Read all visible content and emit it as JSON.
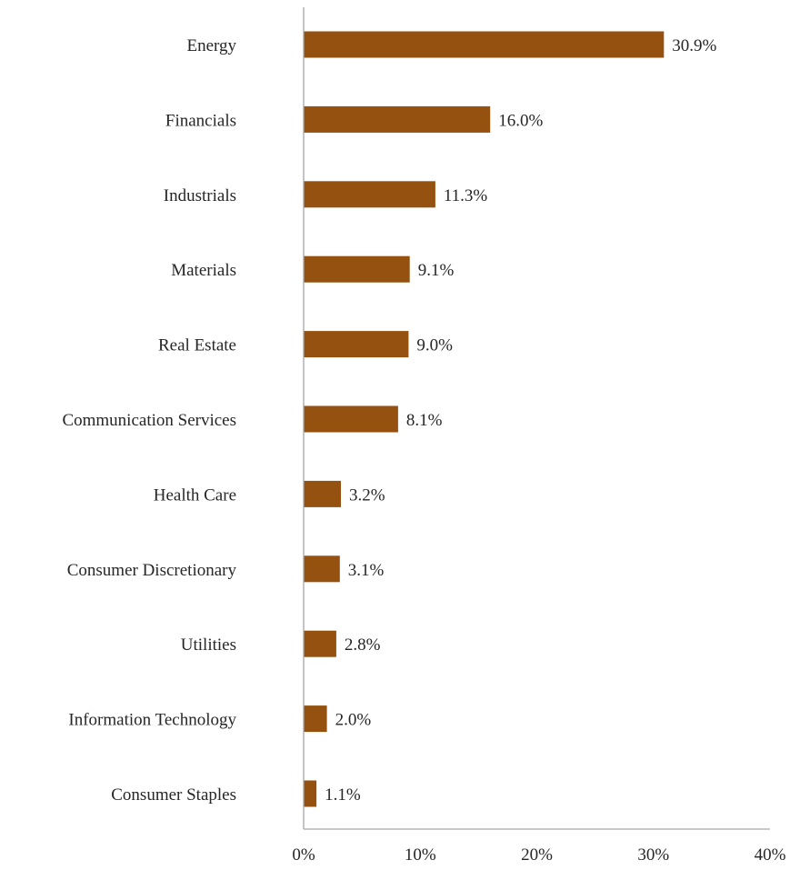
{
  "chart_data": {
    "type": "bar",
    "orientation": "horizontal",
    "categories": [
      "Energy",
      "Financials",
      "Industrials",
      "Materials",
      "Real Estate",
      "Communication Services",
      "Health Care",
      "Consumer Discretionary",
      "Utilities",
      "Information Technology",
      "Consumer Staples"
    ],
    "values": [
      30.9,
      16.0,
      11.3,
      9.1,
      9.0,
      8.1,
      3.2,
      3.1,
      2.8,
      2.0,
      1.1
    ],
    "data_labels": [
      "30.9%",
      "16.0%",
      "11.3%",
      "9.1%",
      "9.0%",
      "8.1%",
      "3.2%",
      "3.1%",
      "2.8%",
      "2.0%",
      "1.1%"
    ],
    "xlim": [
      0,
      40
    ],
    "xticks": [
      0,
      10,
      20,
      30,
      40
    ],
    "xtick_labels": [
      "0%",
      "10%",
      "20%",
      "30%",
      "40%"
    ],
    "grid": false,
    "legend": "none",
    "colors": {
      "bar": "#94510F",
      "axis": "#A6A6A6",
      "text": "#262626"
    }
  }
}
